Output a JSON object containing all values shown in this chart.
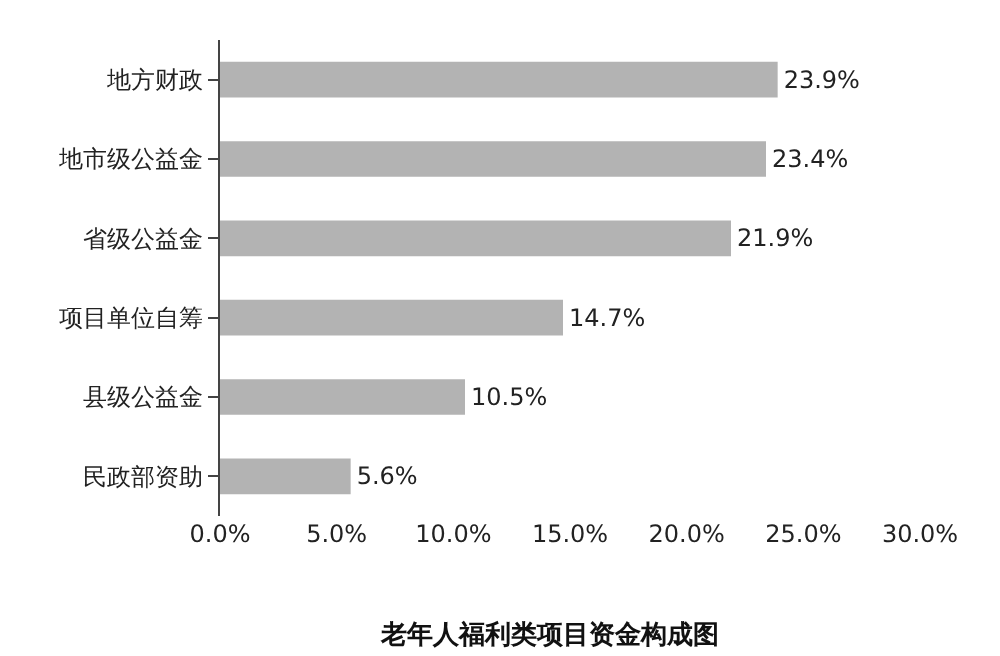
{
  "chart_data": {
    "type": "bar",
    "orientation": "horizontal",
    "title": "老年人福利类项目资金构成图",
    "categories": [
      "地方财政",
      "地市级公益金",
      "省级公益金",
      "项目单位自筹",
      "县级公益金",
      "民政部资助"
    ],
    "values": [
      23.9,
      23.4,
      21.9,
      14.7,
      10.5,
      5.6
    ],
    "value_labels": [
      "23.9%",
      "23.4%",
      "21.9%",
      "14.7%",
      "10.5%",
      "5.6%"
    ],
    "color": "#b3b3b3",
    "xlim": [
      0,
      30
    ],
    "xticks": [
      {
        "value": 0,
        "label": "0.0%"
      },
      {
        "value": 5,
        "label": "5.0%"
      },
      {
        "value": 10,
        "label": "10.0%"
      },
      {
        "value": 15,
        "label": "15.0%"
      },
      {
        "value": 20,
        "label": "20.0%"
      },
      {
        "value": 25,
        "label": "25.0%"
      },
      {
        "value": 30,
        "label": "30.0%"
      }
    ],
    "grid": false
  }
}
